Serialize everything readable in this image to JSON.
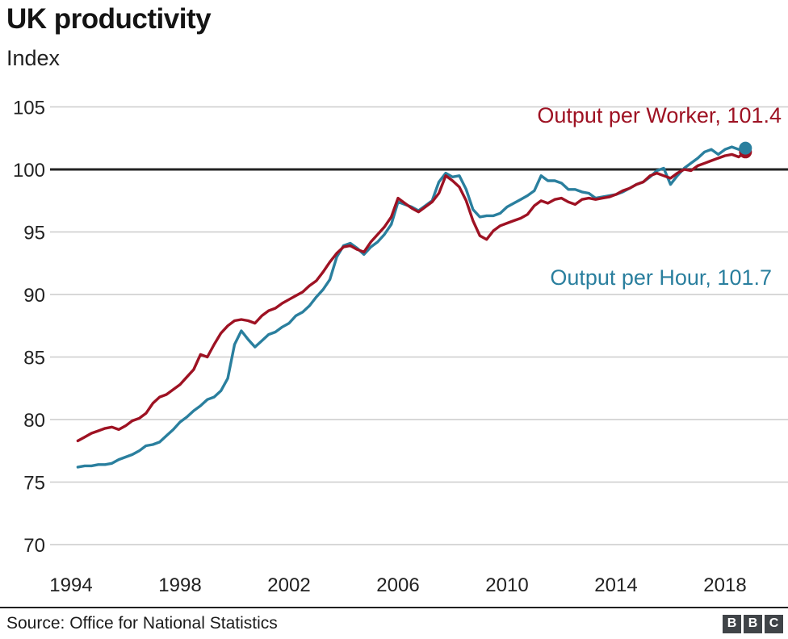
{
  "header": {
    "title": "UK productivity",
    "subtitle": "Index"
  },
  "chart_data": {
    "type": "line",
    "title": "UK productivity",
    "ylabel_unit": "Index",
    "xlabel": "",
    "xticks": [
      1994,
      1998,
      2002,
      2006,
      2010,
      2014,
      2018
    ],
    "yticks": [
      70,
      75,
      80,
      85,
      90,
      95,
      100,
      105
    ],
    "ylim": [
      68.5,
      106
    ],
    "baseline": 100,
    "grid_color": "#cccccc",
    "baseline_color": "#222222",
    "legend_position": "inline-annotations",
    "x": [
      1994.25,
      1994.5,
      1994.75,
      1995.0,
      1995.25,
      1995.5,
      1995.75,
      1996.0,
      1996.25,
      1996.5,
      1996.75,
      1997.0,
      1997.25,
      1997.5,
      1997.75,
      1998.0,
      1998.25,
      1998.5,
      1998.75,
      1999.0,
      1999.25,
      1999.5,
      1999.75,
      2000.0,
      2000.25,
      2000.5,
      2000.75,
      2001.0,
      2001.25,
      2001.5,
      2001.75,
      2002.0,
      2002.25,
      2002.5,
      2002.75,
      2003.0,
      2003.25,
      2003.5,
      2003.75,
      2004.0,
      2004.25,
      2004.5,
      2004.75,
      2005.0,
      2005.25,
      2005.5,
      2005.75,
      2006.0,
      2006.25,
      2006.5,
      2006.75,
      2007.0,
      2007.25,
      2007.5,
      2007.75,
      2008.0,
      2008.25,
      2008.5,
      2008.75,
      2009.0,
      2009.25,
      2009.5,
      2009.75,
      2010.0,
      2010.25,
      2010.5,
      2010.75,
      2011.0,
      2011.25,
      2011.5,
      2011.75,
      2012.0,
      2012.25,
      2012.5,
      2012.75,
      2013.0,
      2013.25,
      2013.5,
      2013.75,
      2014.0,
      2014.25,
      2014.5,
      2014.75,
      2015.0,
      2015.25,
      2015.5,
      2015.75,
      2016.0,
      2016.25,
      2016.5,
      2016.75,
      2017.0,
      2017.25,
      2017.5,
      2017.75,
      2018.0,
      2018.25,
      2018.5,
      2018.75
    ],
    "series": [
      {
        "name": "Output per Worker",
        "label": "Output per Worker, 101.4",
        "end_value": 101.4,
        "color": "#9e1223",
        "values": [
          78.3,
          78.6,
          78.9,
          79.1,
          79.3,
          79.4,
          79.2,
          79.5,
          79.9,
          80.1,
          80.5,
          81.3,
          81.8,
          82.0,
          82.4,
          82.8,
          83.4,
          84.0,
          85.2,
          85.0,
          86.0,
          86.9,
          87.5,
          87.9,
          88.0,
          87.9,
          87.7,
          88.3,
          88.7,
          88.9,
          89.3,
          89.6,
          89.9,
          90.2,
          90.7,
          91.1,
          91.8,
          92.6,
          93.3,
          93.8,
          93.9,
          93.6,
          93.4,
          94.2,
          94.8,
          95.4,
          96.2,
          97.7,
          97.3,
          96.9,
          96.6,
          97.0,
          97.4,
          98.1,
          99.5,
          99.1,
          98.6,
          97.5,
          95.9,
          94.7,
          94.4,
          95.1,
          95.5,
          95.7,
          95.9,
          96.1,
          96.4,
          97.1,
          97.5,
          97.3,
          97.6,
          97.7,
          97.4,
          97.2,
          97.6,
          97.7,
          97.6,
          97.7,
          97.8,
          98.0,
          98.3,
          98.5,
          98.8,
          99.0,
          99.5,
          99.7,
          99.5,
          99.3,
          99.7,
          100.0,
          99.9,
          100.3,
          100.5,
          100.7,
          100.9,
          101.1,
          101.2,
          101.0,
          101.4
        ]
      },
      {
        "name": "Output per Hour",
        "label": "Output per Hour, 101.7",
        "end_value": 101.7,
        "color": "#2a7f9e",
        "values": [
          76.2,
          76.3,
          76.3,
          76.4,
          76.4,
          76.5,
          76.8,
          77.0,
          77.2,
          77.5,
          77.9,
          78.0,
          78.2,
          78.7,
          79.2,
          79.8,
          80.2,
          80.7,
          81.1,
          81.6,
          81.8,
          82.3,
          83.3,
          86.0,
          87.1,
          86.4,
          85.8,
          86.3,
          86.8,
          87.0,
          87.4,
          87.7,
          88.3,
          88.6,
          89.1,
          89.8,
          90.4,
          91.2,
          93.0,
          93.9,
          94.1,
          93.7,
          93.2,
          93.8,
          94.2,
          94.8,
          95.6,
          97.4,
          97.2,
          97.0,
          96.7,
          97.1,
          97.5,
          99.0,
          99.7,
          99.4,
          99.5,
          98.4,
          96.8,
          96.2,
          96.3,
          96.3,
          96.5,
          97.0,
          97.3,
          97.6,
          97.9,
          98.3,
          99.5,
          99.1,
          99.1,
          98.9,
          98.4,
          98.4,
          98.2,
          98.1,
          97.7,
          97.8,
          97.9,
          98.0,
          98.2,
          98.5,
          98.8,
          99.0,
          99.4,
          99.9,
          100.1,
          98.8,
          99.5,
          100.1,
          100.5,
          100.9,
          101.4,
          101.6,
          101.2,
          101.6,
          101.8,
          101.6,
          101.7
        ]
      }
    ]
  },
  "footer": {
    "source": "Source: Office for National Statistics",
    "logo": {
      "letters": [
        "B",
        "B",
        "C"
      ],
      "block_color": "#404448",
      "letter_color": "#ffffff"
    }
  }
}
